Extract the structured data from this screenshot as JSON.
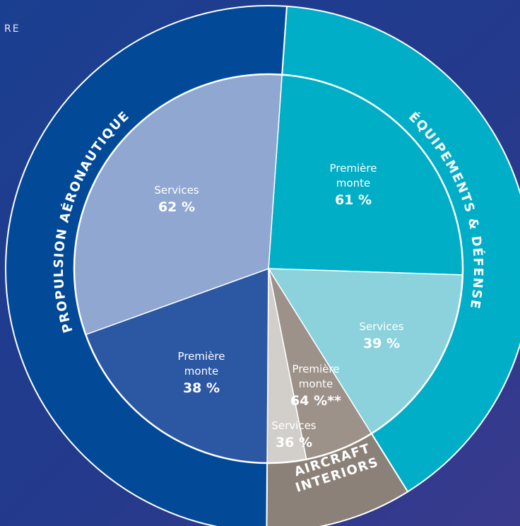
{
  "chart_data": {
    "type": "sunburst",
    "title": "RE",
    "groups": [
      {
        "name": "ÉQUIPEMENTS & DÉFENSE",
        "value": 40,
        "color": "#00aec7",
        "segments": {
          "names": [
            "Première monte",
            "Services"
          ],
          "values": [
            61,
            39
          ],
          "value_labels": [
            "61 %",
            "39 %"
          ],
          "colors": [
            "#00aec6",
            "#8bd2dc"
          ]
        }
      },
      {
        "name": "AIRCRAFT INTERIORS",
        "value": 9,
        "color": "#8b8178",
        "segments": {
          "names": [
            "Première monte",
            "Services"
          ],
          "values": [
            64,
            36
          ],
          "value_labels": [
            "64 %**",
            "36 %"
          ],
          "colors": [
            "#9c928a",
            "#d2cfca"
          ]
        }
      },
      {
        "name": "PROPULSION AÉRONAUTIQUE",
        "value": 51,
        "color": "#024a98",
        "segments": {
          "names": [
            "Première monte",
            "Services"
          ],
          "values": [
            38,
            62
          ],
          "value_labels": [
            "38 %",
            "62 %"
          ],
          "colors": [
            "#2b57a3",
            "#8fa7d1"
          ]
        }
      }
    ]
  }
}
